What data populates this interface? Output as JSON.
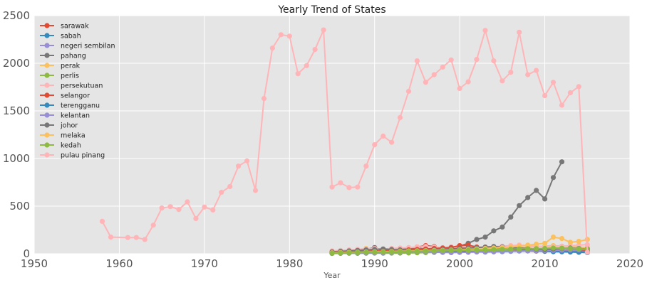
{
  "chart_data": {
    "type": "line",
    "title": "Yearly Trend of States",
    "xlabel": "Year",
    "ylabel": "",
    "xlim": [
      1950,
      2020
    ],
    "ylim": [
      0,
      2500
    ],
    "xticks": [
      "1950",
      "1960",
      "1970",
      "1980",
      "1990",
      "2000",
      "2010",
      "2020"
    ],
    "yticks": [
      "0",
      "500",
      "1000",
      "1500",
      "2000",
      "2500"
    ],
    "grid": true,
    "legend_position": "top-left",
    "plot_background": "#e5e5e5",
    "series": [
      {
        "name": "sarawak",
        "color": "#e24a33",
        "x": [
          1985,
          1986,
          1987,
          1988,
          1989,
          1990,
          1991,
          1992,
          1993,
          1994,
          1995,
          1996,
          1997,
          1998,
          1999,
          2000,
          2001,
          2002,
          2003,
          2004,
          2005,
          2006,
          2007,
          2008,
          2009,
          2010,
          2011,
          2012,
          2013,
          2014,
          2015
        ],
        "y": [
          12,
          15,
          10,
          12,
          15,
          20,
          18,
          22,
          25,
          30,
          70,
          85,
          75,
          55,
          50,
          60,
          75,
          40,
          30,
          25,
          28,
          30,
          32,
          30,
          28,
          35,
          40,
          38,
          35,
          32,
          30
        ]
      },
      {
        "name": "sabah",
        "color": "#348abd",
        "x": [
          1985,
          1986,
          1987,
          1988,
          1989,
          1990,
          1991,
          1992,
          1993,
          1994,
          1995,
          1996,
          1997,
          1998,
          1999,
          2000,
          2001,
          2002,
          2003,
          2004,
          2005,
          2006,
          2007,
          2008,
          2009,
          2010,
          2011,
          2012,
          2013,
          2014,
          2015
        ],
        "y": [
          5,
          8,
          10,
          12,
          15,
          18,
          20,
          25,
          40,
          35,
          30,
          28,
          25,
          22,
          20,
          18,
          20,
          22,
          25,
          28,
          30,
          32,
          35,
          30,
          28,
          25,
          22,
          20,
          18,
          15,
          12
        ]
      },
      {
        "name": "negeri sembilan",
        "color": "#988ed5",
        "x": [
          1985,
          1986,
          1987,
          1988,
          1989,
          1990,
          1991,
          1992,
          1993,
          1994,
          1995,
          1996,
          1997,
          1998,
          1999,
          2000,
          2001,
          2002,
          2003,
          2004,
          2005,
          2006,
          2007,
          2008,
          2009,
          2010,
          2011,
          2012,
          2013,
          2014,
          2015
        ],
        "y": [
          8,
          10,
          12,
          10,
          12,
          15,
          12,
          14,
          16,
          18,
          20,
          22,
          20,
          18,
          16,
          18,
          20,
          22,
          25,
          28,
          30,
          32,
          35,
          40,
          38,
          35,
          32,
          30,
          28,
          25,
          20
        ]
      },
      {
        "name": "pahang",
        "color": "#777777",
        "x": [
          1985,
          1986,
          1987,
          1988,
          1989,
          1990,
          1991,
          1992,
          1993,
          1994,
          1995,
          1996,
          1997,
          1998,
          1999,
          2000,
          2001,
          2002,
          2003,
          2004,
          2005,
          2006,
          2007,
          2008,
          2009,
          2010,
          2011,
          2012
        ],
        "y": [
          10,
          15,
          20,
          30,
          45,
          65,
          30,
          40,
          45,
          55,
          60,
          50,
          55,
          60,
          70,
          80,
          110,
          150,
          175,
          240,
          280,
          385,
          505,
          590,
          665,
          575,
          800,
          965
        ]
      },
      {
        "name": "perak",
        "color": "#fbc15e",
        "x": [
          1985,
          1986,
          1987,
          1988,
          1989,
          1990,
          1991,
          1992,
          1993,
          1994,
          1995,
          1996,
          1997,
          1998,
          1999,
          2000,
          2001,
          2002,
          2003,
          2004,
          2005,
          2006,
          2007,
          2008,
          2009,
          2010,
          2011,
          2012,
          2013,
          2014,
          2015
        ],
        "y": [
          25,
          30,
          35,
          45,
          55,
          30,
          25,
          30,
          35,
          40,
          45,
          50,
          55,
          50,
          45,
          50,
          55,
          60,
          55,
          50,
          55,
          60,
          65,
          70,
          75,
          80,
          85,
          80,
          75,
          70,
          65
        ]
      },
      {
        "name": "perlis",
        "color": "#8eba42",
        "x": [
          1985,
          1986,
          1987,
          1988,
          1989,
          1990,
          1991,
          1992,
          1993,
          1994,
          1995,
          1996,
          1997,
          1998,
          1999,
          2000,
          2001,
          2002,
          2003,
          2004,
          2005,
          2006,
          2007,
          2008,
          2009,
          2010,
          2011,
          2012,
          2013,
          2014,
          2015
        ],
        "y": [
          3,
          4,
          5,
          4,
          5,
          6,
          5,
          6,
          7,
          8,
          10,
          12,
          14,
          16,
          18,
          20,
          22,
          25,
          40,
          30,
          28,
          32,
          35,
          40,
          45,
          50,
          55,
          60,
          55,
          50,
          45
        ]
      },
      {
        "name": "persekutuan",
        "color": "#ffb5b8",
        "x": [
          1985,
          1986,
          1987,
          1988,
          1989,
          1990,
          1991,
          1992,
          1993,
          1994,
          1995,
          1996,
          1997,
          1998,
          1999,
          2000,
          2001,
          2002,
          2003,
          2004,
          2005,
          2006,
          2007,
          2008,
          2009,
          2010,
          2011,
          2012,
          2013,
          2014,
          2015
        ],
        "y": [
          30,
          35,
          40,
          45,
          50,
          55,
          50,
          55,
          60,
          65,
          70,
          75,
          70,
          65,
          70,
          75,
          70,
          65,
          70,
          75,
          80,
          85,
          90,
          85,
          80,
          75,
          70,
          80,
          85,
          90,
          95
        ]
      },
      {
        "name": "selangor",
        "color": "#e24a33",
        "x": [
          1985,
          1986,
          1987,
          1988,
          1989,
          1990,
          1991,
          1992,
          1993,
          1994,
          1995,
          1996,
          1997,
          1998,
          1999,
          2000,
          2001,
          2002,
          2003,
          2004,
          2005,
          2006,
          2007,
          2008,
          2009,
          2010,
          2011,
          2012,
          2013,
          2014,
          2015
        ],
        "y": [
          15,
          18,
          20,
          22,
          25,
          30,
          28,
          32,
          35,
          40,
          45,
          50,
          55,
          60,
          65,
          85,
          90,
          70,
          60,
          55,
          50,
          45,
          40,
          35,
          30,
          28,
          30,
          35,
          40,
          45,
          50
        ]
      },
      {
        "name": "terengganu",
        "color": "#348abd",
        "x": [
          1985,
          1986,
          1987,
          1988,
          1989,
          1990,
          1991,
          1992,
          1993,
          1994,
          1995,
          1996,
          1997,
          1998,
          1999,
          2000,
          2001,
          2002,
          2003,
          2004,
          2005,
          2006,
          2007,
          2008,
          2009,
          2010,
          2011,
          2012,
          2013,
          2014,
          2015
        ],
        "y": [
          5,
          6,
          8,
          10,
          12,
          15,
          18,
          20,
          22,
          25,
          28,
          30,
          32,
          30,
          28,
          25,
          22,
          20,
          18,
          20,
          22,
          25,
          28,
          30,
          32,
          30,
          28,
          25,
          22,
          20,
          18
        ]
      },
      {
        "name": "kelantan",
        "color": "#988ed5",
        "x": [
          1985,
          1986,
          1987,
          1988,
          1989,
          1990,
          1991,
          1992,
          1993,
          1994,
          1995,
          1996,
          1997,
          1998,
          1999,
          2000,
          2001,
          2002,
          2003,
          2004,
          2005,
          2006,
          2007,
          2008,
          2009,
          2010,
          2011,
          2012,
          2013,
          2014,
          2015
        ],
        "y": [
          4,
          5,
          6,
          7,
          8,
          10,
          12,
          14,
          16,
          18,
          20,
          18,
          16,
          14,
          12,
          14,
          16,
          18,
          20,
          22,
          24,
          26,
          28,
          30,
          32,
          34,
          36,
          38,
          40,
          42,
          44
        ]
      },
      {
        "name": "johor",
        "color": "#777777",
        "x": [
          1985,
          1986,
          1987,
          1988,
          1989,
          1990,
          1991,
          1992,
          1993,
          1994,
          1995,
          1996,
          1997,
          1998,
          1999,
          2000,
          2001,
          2002,
          2003,
          2004,
          2005,
          2006,
          2007,
          2008,
          2009,
          2010,
          2011,
          2012,
          2013,
          2014,
          2015
        ],
        "y": [
          20,
          25,
          30,
          35,
          40,
          45,
          50,
          45,
          40,
          35,
          30,
          35,
          40,
          45,
          50,
          55,
          60,
          65,
          70,
          75,
          70,
          65,
          60,
          55,
          50,
          45,
          50,
          55,
          60,
          55,
          50
        ]
      },
      {
        "name": "melaka",
        "color": "#fbc15e",
        "x": [
          1985,
          1986,
          1987,
          1988,
          1989,
          1990,
          1991,
          1992,
          1993,
          1994,
          1995,
          1996,
          1997,
          1998,
          1999,
          2000,
          2001,
          2002,
          2003,
          2004,
          2005,
          2006,
          2007,
          2008,
          2009,
          2010,
          2011,
          2012,
          2013,
          2014,
          2015
        ],
        "y": [
          10,
          12,
          14,
          16,
          18,
          20,
          22,
          24,
          26,
          28,
          30,
          32,
          34,
          36,
          38,
          40,
          45,
          50,
          55,
          60,
          65,
          70,
          80,
          90,
          100,
          110,
          175,
          160,
          120,
          130,
          150
        ]
      },
      {
        "name": "kedah",
        "color": "#8eba42",
        "x": [
          1985,
          1986,
          1987,
          1988,
          1989,
          1990,
          1991,
          1992,
          1993,
          1994,
          1995,
          1996,
          1997,
          1998,
          1999,
          2000,
          2001,
          2002,
          2003,
          2004,
          2005,
          2006,
          2007,
          2008,
          2009,
          2010,
          2011,
          2012,
          2013,
          2014,
          2015
        ],
        "y": [
          6,
          8,
          10,
          12,
          14,
          16,
          18,
          20,
          22,
          24,
          26,
          28,
          30,
          32,
          34,
          36,
          38,
          40,
          42,
          44,
          46,
          48,
          50,
          52,
          54,
          56,
          60,
          58,
          55,
          52,
          50
        ]
      },
      {
        "name": "pulau pinang",
        "color": "#ffb5b8",
        "x": [
          1958,
          1959,
          1961,
          1962,
          1963,
          1964,
          1965,
          1966,
          1967,
          1968,
          1969,
          1970,
          1971,
          1972,
          1973,
          1974,
          1975,
          1976,
          1977,
          1978,
          1979,
          1980,
          1981,
          1982,
          1983,
          1984,
          1985,
          1986,
          1987,
          1988,
          1989,
          1990,
          1991,
          1992,
          1993,
          1994,
          1995,
          1996,
          1997,
          1998,
          1999,
          2000,
          2001,
          2002,
          2003,
          2004,
          2005,
          2006,
          2007,
          2008,
          2009,
          2010,
          2011,
          2012,
          2013,
          2014,
          2015
        ],
        "y": [
          340,
          175,
          170,
          170,
          150,
          300,
          480,
          495,
          465,
          545,
          370,
          490,
          460,
          645,
          705,
          920,
          975,
          665,
          1630,
          2160,
          2300,
          2285,
          1890,
          1975,
          2145,
          2350,
          700,
          745,
          695,
          700,
          920,
          1145,
          1235,
          1170,
          1430,
          1705,
          2025,
          1800,
          1880,
          1960,
          2035,
          1735,
          1805,
          2040,
          2345,
          2025,
          1815,
          1905,
          2325,
          1880,
          1925,
          1660,
          1800,
          1560,
          1690,
          1755,
          15
        ]
      }
    ]
  }
}
